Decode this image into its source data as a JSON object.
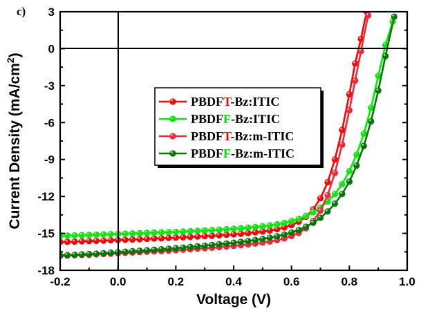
{
  "chart_data": {
    "type": "line",
    "panel_label": "c)",
    "title": "",
    "xlabel": "Voltage (V)",
    "ylabel": "Current Density (mA/cm",
    "ylabel_superscript": "2",
    "ylabel_suffix": ")",
    "xlim": [
      -0.2,
      1.0
    ],
    "ylim": [
      -18,
      3
    ],
    "xticks": [
      -0.2,
      0.0,
      0.2,
      0.4,
      0.6,
      0.8,
      1.0
    ],
    "xtick_labels": [
      "-0.2",
      "0.0",
      "0.2",
      "0.4",
      "0.6",
      "0.8",
      "1.0"
    ],
    "yticks": [
      3,
      0,
      -3,
      -6,
      -9,
      -12,
      -15,
      -18
    ],
    "ytick_labels": [
      "3",
      "0",
      "-3",
      "-6",
      "-9",
      "-12",
      "-15",
      "-18"
    ],
    "grid": false,
    "zero_lines": true,
    "legend_position": "center-left",
    "series": [
      {
        "name": "PBDFT-Bz:ITIC",
        "legend_prefix": "PBDF",
        "legend_highlight": "T",
        "legend_suffix": "-Bz:ITIC",
        "highlight_color": "#ff0000",
        "color": "#ff0000",
        "x": [
          -0.2,
          -0.175,
          -0.15,
          -0.125,
          -0.1,
          -0.075,
          -0.05,
          -0.025,
          0.0,
          0.025,
          0.05,
          0.075,
          0.1,
          0.125,
          0.15,
          0.175,
          0.2,
          0.225,
          0.25,
          0.275,
          0.3,
          0.325,
          0.35,
          0.375,
          0.4,
          0.425,
          0.45,
          0.475,
          0.5,
          0.525,
          0.55,
          0.575,
          0.6,
          0.625,
          0.65,
          0.675,
          0.7,
          0.725,
          0.75,
          0.775,
          0.8,
          0.82,
          0.84,
          0.86
        ],
        "y": [
          -15.7,
          -15.69,
          -15.67,
          -15.65,
          -15.63,
          -15.61,
          -15.59,
          -15.56,
          -15.54,
          -15.52,
          -15.5,
          -15.47,
          -15.45,
          -15.42,
          -15.4,
          -15.37,
          -15.35,
          -15.32,
          -15.29,
          -15.26,
          -15.23,
          -15.2,
          -15.16,
          -15.12,
          -15.08,
          -15.03,
          -14.98,
          -14.92,
          -14.85,
          -14.77,
          -14.66,
          -14.52,
          -14.33,
          -14.05,
          -13.65,
          -13.05,
          -12.15,
          -10.85,
          -9.0,
          -6.6,
          -3.7,
          -1.2,
          0.8,
          3.0
        ]
      },
      {
        "name": "PBDFF-Bz:ITIC",
        "legend_prefix": "PBDF",
        "legend_highlight": "F",
        "legend_suffix": "-Bz:ITIC",
        "highlight_color": "#00e000",
        "color": "#00ee00",
        "x": [
          -0.2,
          -0.175,
          -0.15,
          -0.125,
          -0.1,
          -0.075,
          -0.05,
          -0.025,
          0.0,
          0.025,
          0.05,
          0.075,
          0.1,
          0.125,
          0.15,
          0.175,
          0.2,
          0.225,
          0.25,
          0.275,
          0.3,
          0.325,
          0.35,
          0.375,
          0.4,
          0.425,
          0.45,
          0.475,
          0.5,
          0.525,
          0.55,
          0.575,
          0.6,
          0.625,
          0.65,
          0.675,
          0.7,
          0.725,
          0.75,
          0.775,
          0.8,
          0.825,
          0.85,
          0.875,
          0.9,
          0.925,
          0.95
        ],
        "y": [
          -15.2,
          -15.18,
          -15.16,
          -15.14,
          -15.12,
          -15.1,
          -15.08,
          -15.06,
          -15.04,
          -15.02,
          -15.0,
          -14.98,
          -14.96,
          -14.94,
          -14.92,
          -14.9,
          -14.88,
          -14.85,
          -14.82,
          -14.79,
          -14.76,
          -14.73,
          -14.7,
          -14.66,
          -14.62,
          -14.58,
          -14.53,
          -14.48,
          -14.42,
          -14.35,
          -14.26,
          -14.15,
          -14.0,
          -13.82,
          -13.58,
          -13.28,
          -12.9,
          -12.42,
          -11.8,
          -11.0,
          -9.95,
          -8.6,
          -6.9,
          -4.8,
          -2.2,
          0.3,
          2.2
        ]
      },
      {
        "name": "PBDFT-Bz:m-ITIC",
        "legend_prefix": "PBDF",
        "legend_highlight": "T",
        "legend_suffix": "-Bz:m-ITIC",
        "highlight_color": "#ff0000",
        "color": "#f0283c",
        "x": [
          -0.2,
          -0.175,
          -0.15,
          -0.125,
          -0.1,
          -0.075,
          -0.05,
          -0.025,
          0.0,
          0.025,
          0.05,
          0.075,
          0.1,
          0.125,
          0.15,
          0.175,
          0.2,
          0.225,
          0.25,
          0.275,
          0.3,
          0.325,
          0.35,
          0.375,
          0.4,
          0.425,
          0.45,
          0.475,
          0.5,
          0.525,
          0.55,
          0.575,
          0.6,
          0.625,
          0.65,
          0.675,
          0.7,
          0.725,
          0.75,
          0.775,
          0.8,
          0.82,
          0.84,
          0.865
        ],
        "y": [
          -16.82,
          -16.8,
          -16.78,
          -16.76,
          -16.74,
          -16.71,
          -16.68,
          -16.65,
          -16.62,
          -16.59,
          -16.56,
          -16.53,
          -16.5,
          -16.47,
          -16.44,
          -16.41,
          -16.37,
          -16.33,
          -16.29,
          -16.25,
          -16.21,
          -16.17,
          -16.12,
          -16.07,
          -16.02,
          -15.96,
          -15.9,
          -15.83,
          -15.75,
          -15.66,
          -15.55,
          -15.41,
          -15.22,
          -14.96,
          -14.58,
          -14.0,
          -13.15,
          -11.9,
          -10.1,
          -7.8,
          -5.0,
          -2.6,
          -0.2,
          2.7
        ]
      },
      {
        "name": "PBDFF-Bz:m-ITIC",
        "legend_prefix": "PBDF",
        "legend_highlight": "F",
        "legend_suffix": "-Bz:m-ITIC",
        "highlight_color": "#00e000",
        "color": "#007800",
        "x": [
          -0.2,
          -0.175,
          -0.15,
          -0.125,
          -0.1,
          -0.075,
          -0.05,
          -0.025,
          0.0,
          0.025,
          0.05,
          0.075,
          0.1,
          0.125,
          0.15,
          0.175,
          0.2,
          0.225,
          0.25,
          0.275,
          0.3,
          0.325,
          0.35,
          0.375,
          0.4,
          0.425,
          0.45,
          0.475,
          0.5,
          0.525,
          0.55,
          0.575,
          0.6,
          0.625,
          0.65,
          0.675,
          0.7,
          0.725,
          0.75,
          0.775,
          0.8,
          0.825,
          0.85,
          0.875,
          0.9,
          0.925,
          0.955
        ],
        "y": [
          -16.8,
          -16.77,
          -16.74,
          -16.71,
          -16.68,
          -16.65,
          -16.61,
          -16.57,
          -16.53,
          -16.49,
          -16.45,
          -16.41,
          -16.37,
          -16.33,
          -16.29,
          -16.25,
          -16.2,
          -16.15,
          -16.1,
          -16.05,
          -16.0,
          -15.94,
          -15.88,
          -15.82,
          -15.76,
          -15.69,
          -15.62,
          -15.54,
          -15.45,
          -15.35,
          -15.24,
          -15.1,
          -14.93,
          -14.72,
          -14.46,
          -14.14,
          -13.73,
          -13.22,
          -12.58,
          -11.8,
          -10.8,
          -9.5,
          -7.9,
          -5.9,
          -3.4,
          -0.6,
          2.6
        ]
      }
    ]
  }
}
